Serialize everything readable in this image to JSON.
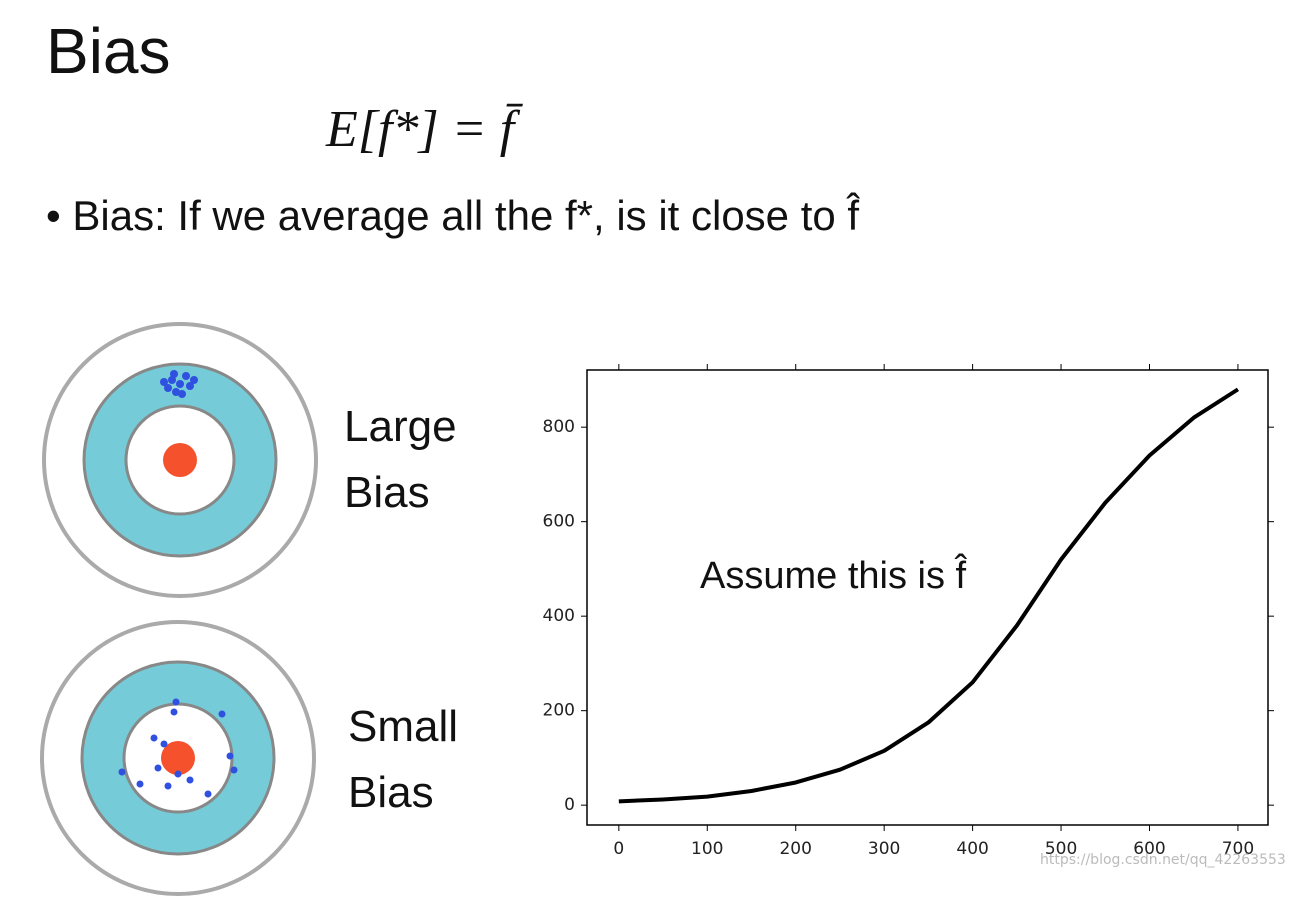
{
  "title": "Bias",
  "formula": "E[f*] = f̄",
  "bullet": "Bias: If we average all the f*, is it close to f̂",
  "targets": [
    {
      "label": "Large Bias"
    },
    {
      "label": "Small Bias"
    }
  ],
  "watermark": "https://blog.csdn.net/qq_42263553",
  "chart_data": {
    "type": "line",
    "annotation": "Assume this is f̂",
    "x": [
      0,
      50,
      100,
      150,
      200,
      250,
      300,
      350,
      400,
      450,
      500,
      550,
      600,
      650,
      700
    ],
    "series": [
      {
        "color": "#000000",
        "values": [
          8,
          12,
          18,
          30,
          48,
          75,
          115,
          175,
          260,
          380,
          520,
          640,
          740,
          820,
          880
        ]
      }
    ],
    "xlim": [
      -36,
      734
    ],
    "ylim": [
      -42,
      921
    ],
    "xticks": [
      0,
      100,
      200,
      300,
      400,
      500,
      600,
      700
    ],
    "yticks": [
      0,
      200,
      400,
      600,
      800
    ]
  }
}
